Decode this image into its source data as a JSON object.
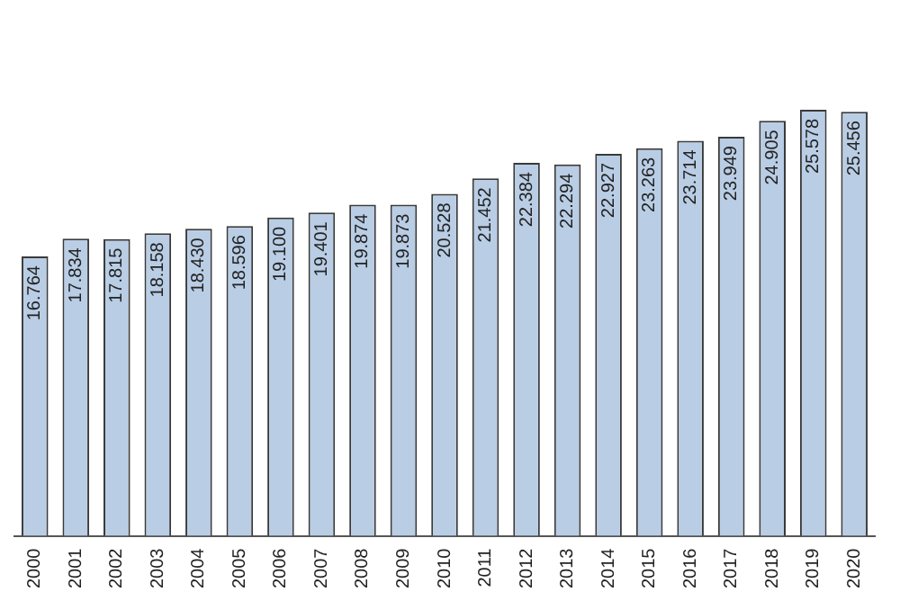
{
  "chart_data": {
    "type": "bar",
    "categories": [
      "2000",
      "2001",
      "2002",
      "2003",
      "2004",
      "2005",
      "2006",
      "2007",
      "2008",
      "2009",
      "2010",
      "2011",
      "2012",
      "2013",
      "2014",
      "2015",
      "2016",
      "2017",
      "2018",
      "2019",
      "2020"
    ],
    "values": [
      16764,
      17834,
      17815,
      18158,
      18430,
      18596,
      19100,
      19401,
      19874,
      19873,
      20528,
      21452,
      22384,
      22294,
      22927,
      23263,
      23714,
      23949,
      24905,
      25578,
      25456
    ],
    "value_labels": [
      "16.764",
      "17.834",
      "17.815",
      "18.158",
      "18.430",
      "18.596",
      "19.100",
      "19.401",
      "19.874",
      "19.873",
      "20.528",
      "21.452",
      "22.384",
      "22.294",
      "22.927",
      "23.263",
      "23.714",
      "23.949",
      "24.905",
      "25.578",
      "25.456"
    ],
    "color": "#b9cde5",
    "grid": false,
    "legend": false,
    "tick_labels": "x"
  }
}
